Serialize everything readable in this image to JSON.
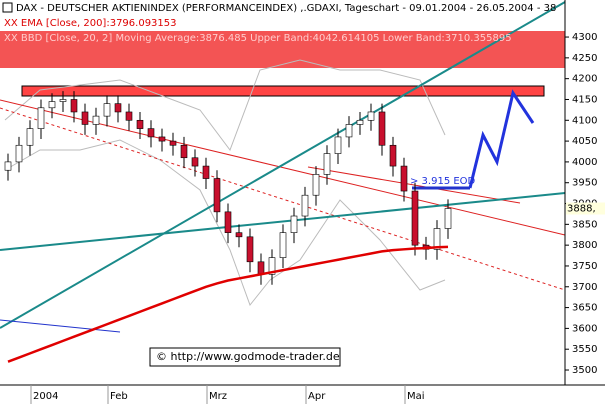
{
  "chart_data": {
    "type": "candlestick",
    "title": "DAX - DEUTSCHER AKTIENINDEX (PERFORMANCEINDEX) ,.GDAXI, Tageschart - 09.01.2004 - 26.05.2004 - 38",
    "indicators": [
      "XX EMA [Close, 200]:3796.093153",
      "XX BBD [Close, 20, 2] Moving Average:3876.485 Upper Band:4042.614105 Lower Band:3710.355895"
    ],
    "annotation": "> 3.915 EOD",
    "price_label": "3888,",
    "copyright": "© http://www.godmode-trader.de",
    "categories": [
      null,
      null,
      null,
      "2004",
      null,
      null,
      null,
      null,
      null,
      null,
      "Feb",
      null,
      null,
      null,
      null,
      null,
      null,
      null,
      null,
      "Mrz",
      null,
      null,
      null,
      null,
      null,
      null,
      null,
      null,
      "Apr",
      null,
      null,
      null,
      null,
      null,
      null,
      null,
      null,
      "Mai",
      null,
      null,
      null
    ],
    "open": [
      3980,
      4000,
      4040,
      4080,
      4130,
      4145,
      4150,
      4120,
      4090,
      4110,
      4140,
      4120,
      4100,
      4080,
      4060,
      4050,
      4040,
      4010,
      3990,
      3960,
      3880,
      3830,
      3820,
      3760,
      3730,
      3770,
      3830,
      3870,
      3920,
      3970,
      4020,
      4060,
      4090,
      4100,
      4120,
      4040,
      3990,
      3930,
      3800,
      3790,
      3840
    ],
    "high": [
      4020,
      4060,
      4100,
      4150,
      4165,
      4170,
      4170,
      4140,
      4130,
      4160,
      4160,
      4140,
      4120,
      4100,
      4080,
      4070,
      4060,
      4030,
      4010,
      3980,
      3900,
      3850,
      3840,
      3780,
      3790,
      3850,
      3890,
      3940,
      3990,
      4040,
      4080,
      4110,
      4120,
      4140,
      4140,
      4060,
      4010,
      3950,
      3820,
      3860,
      3910
    ],
    "low": [
      3955,
      3975,
      4015,
      4055,
      4105,
      4120,
      4095,
      4065,
      4065,
      4085,
      4095,
      4075,
      4055,
      4035,
      4025,
      4015,
      3985,
      3965,
      3935,
      3855,
      3805,
      3795,
      3735,
      3705,
      3705,
      3745,
      3805,
      3845,
      3895,
      3945,
      3995,
      4035,
      4065,
      4075,
      4015,
      3965,
      3905,
      3775,
      3765,
      3765,
      3815
    ],
    "close": [
      4000,
      4040,
      4080,
      4130,
      4145,
      4150,
      4120,
      4090,
      4110,
      4140,
      4120,
      4100,
      4080,
      4060,
      4050,
      4040,
      4010,
      3990,
      3960,
      3880,
      3830,
      3820,
      3760,
      3730,
      3770,
      3830,
      3870,
      3920,
      3970,
      4020,
      4060,
      4090,
      4100,
      4120,
      4040,
      3990,
      3930,
      3800,
      3790,
      3840,
      3888
    ],
    "ema": [
      3520,
      3530,
      3540,
      3550,
      3560,
      3570,
      3580,
      3590,
      3600,
      3610,
      3620,
      3630,
      3640,
      3650,
      3660,
      3670,
      3680,
      3690,
      3700,
      3708,
      3715,
      3720,
      3725,
      3730,
      3735,
      3740,
      3745,
      3750,
      3755,
      3760,
      3765,
      3770,
      3775,
      3780,
      3785,
      3788,
      3790,
      3792,
      3793,
      3795,
      3796
    ],
    "ema_color": "#e00000",
    "candle_color": "#c8102e",
    "ylim": [
      3464,
      4389
    ],
    "yticks": [
      3500,
      3550,
      3600,
      3650,
      3700,
      3750,
      3800,
      3850,
      3900,
      3950,
      4000,
      4050,
      4100,
      4150,
      4200,
      4250,
      4300
    ]
  }
}
